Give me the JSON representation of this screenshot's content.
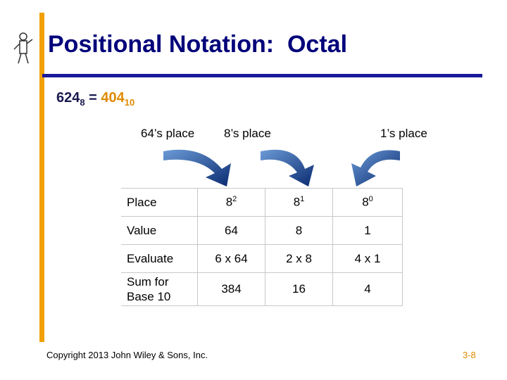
{
  "header": {
    "title": "Positional Notation:  Octal"
  },
  "equation": {
    "left": "624",
    "left_base": "8",
    "equals": "=",
    "right": "404",
    "right_base": "10"
  },
  "place_labels": [
    "64’s place",
    "8’s place",
    "1’s place"
  ],
  "table": {
    "rows": [
      [
        "Place",
        {
          "base": "8",
          "exp": "2"
        },
        {
          "base": "8",
          "exp": "1"
        },
        {
          "base": "8",
          "exp": "0"
        }
      ],
      [
        "Value",
        "64",
        "8",
        "1"
      ],
      [
        "Evaluate",
        "6 x 64",
        "2 x 8",
        "4 x 1"
      ],
      [
        "Sum for Base 10",
        "384",
        "16",
        "4"
      ]
    ]
  },
  "footer": {
    "copyright": "Copyright 2013 John Wiley & Sons, Inc.",
    "slide_number": "3-8"
  }
}
